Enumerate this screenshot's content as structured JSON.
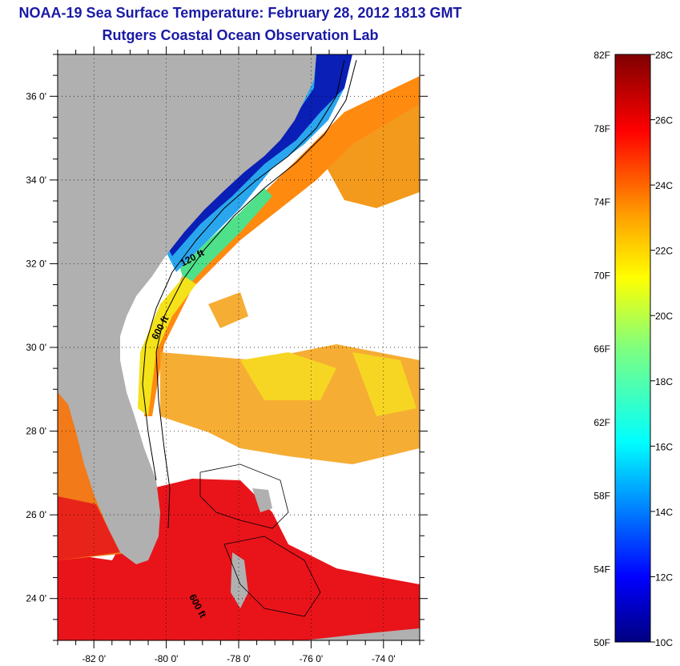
{
  "title": "NOAA-19 Sea Surface Temperature:  February 28, 2012 1813 GMT",
  "subtitle": "Rutgers Coastal Ocean Observation Lab",
  "map": {
    "lat_ticks": [
      "36 0'",
      "34 0'",
      "32 0'",
      "30 0'",
      "28 0'",
      "26 0'",
      "24 0'"
    ],
    "lat_values": [
      36,
      34,
      32,
      30,
      28,
      26,
      24
    ],
    "lon_ticks": [
      "-82 0'",
      "-80 0'",
      "-78 0'",
      "-76 0'",
      "-74 0'"
    ],
    "lon_values": [
      -82,
      -80,
      -78,
      -76,
      -74
    ],
    "lon_range": [
      -83,
      -73
    ],
    "lat_range": [
      23,
      37
    ],
    "contour_labels": {
      "c120": "120 ft",
      "c600a": "600 ft",
      "c600b": "600 ft"
    },
    "colors": {
      "land": "#b0b0b0",
      "cloud": "#ffffff",
      "title": "#1a1aa6"
    }
  },
  "colorbar": {
    "f_labels": [
      "82F",
      "78F",
      "74F",
      "70F",
      "66F",
      "62F",
      "58F",
      "54F",
      "50F"
    ],
    "c_labels": [
      "28C",
      "26C",
      "24C",
      "22C",
      "20C",
      "18C",
      "16C",
      "14C",
      "12C",
      "10C"
    ],
    "c_range": [
      10,
      28
    ]
  }
}
